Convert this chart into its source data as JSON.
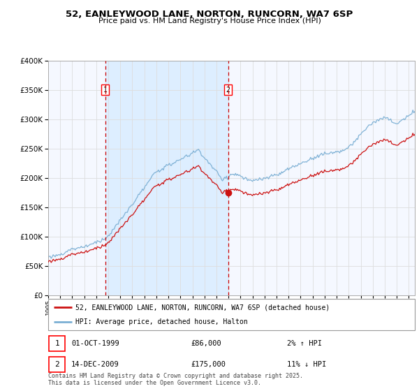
{
  "title": "52, EANLEYWOOD LANE, NORTON, RUNCORN, WA7 6SP",
  "subtitle": "Price paid vs. HM Land Registry's House Price Index (HPI)",
  "legend_line1": "52, EANLEYWOOD LANE, NORTON, RUNCORN, WA7 6SP (detached house)",
  "legend_line2": "HPI: Average price, detached house, Halton",
  "transaction1_date": "01-OCT-1999",
  "transaction1_price": "£86,000",
  "transaction1_hpi": "2% ↑ HPI",
  "transaction1_year": 1999.75,
  "transaction1_value": 86000,
  "transaction2_date": "14-DEC-2009",
  "transaction2_price": "£175,000",
  "transaction2_hpi": "11% ↓ HPI",
  "transaction2_year": 2009.96,
  "transaction2_value": 175000,
  "footer": "Contains HM Land Registry data © Crown copyright and database right 2025.\nThis data is licensed under the Open Government Licence v3.0.",
  "hpi_color": "#7bafd4",
  "price_color": "#cc1111",
  "vline_color": "#cc0000",
  "span_color": "#ddeeff",
  "bg_color": "#f5f8ff",
  "grid_color": "#dddddd",
  "ylim": [
    0,
    400000
  ],
  "yticks": [
    0,
    50000,
    100000,
    150000,
    200000,
    250000,
    300000,
    350000,
    400000
  ],
  "xmin": 1995,
  "xmax": 2025.5
}
